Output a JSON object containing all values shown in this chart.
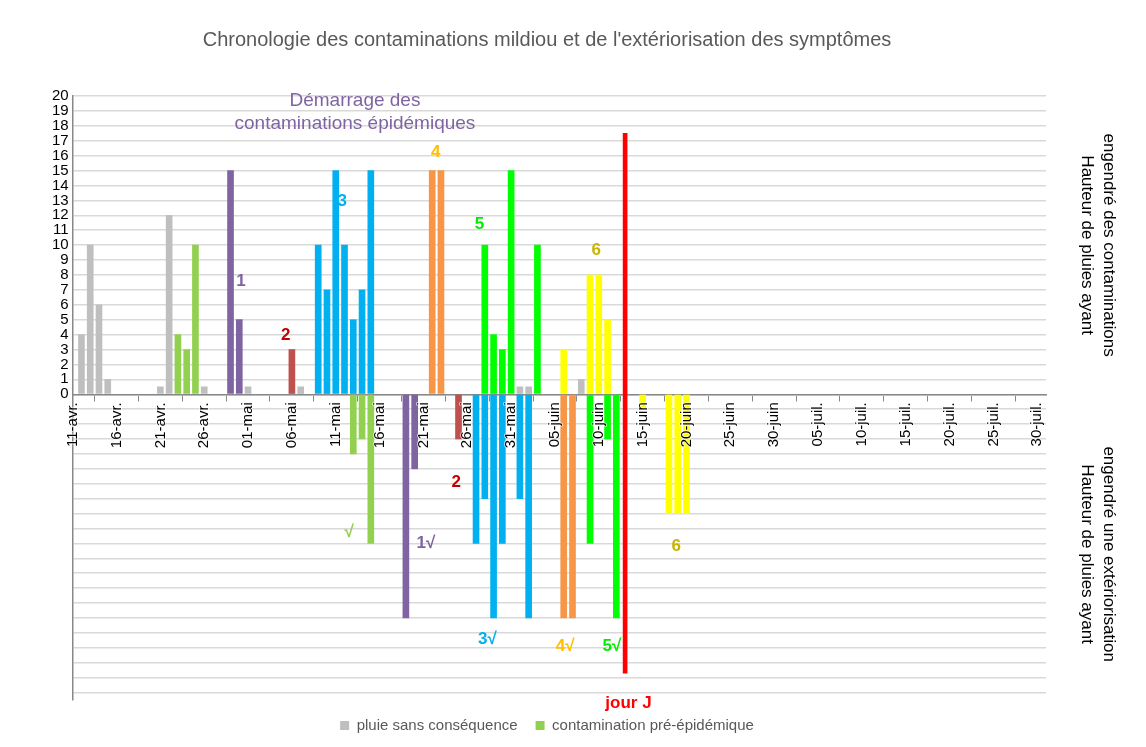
{
  "chart_data": {
    "type": "bar",
    "title": "Chronologie des contaminations mildiou et de l'extériorisation des symptômes",
    "ylabel": "Hauteur de pluies ayant engendré des contaminations",
    "y2label": "Hauteur de pluies ayant engendré une extériorisation",
    "xlim": [
      "--04-11",
      "--07-31"
    ],
    "xticks": [
      {
        "value": "--04-11",
        "label": "11-avr."
      },
      {
        "value": "--04-16",
        "label": "16-avr."
      },
      {
        "value": "--04-21",
        "label": "21-avr."
      },
      {
        "value": "--04-26",
        "label": "26-avr."
      },
      {
        "value": "--05-01",
        "label": "01-mai"
      },
      {
        "value": "--05-06",
        "label": "06-mai"
      },
      {
        "value": "--05-11",
        "label": "11-mai"
      },
      {
        "value": "--05-16",
        "label": "16-mai"
      },
      {
        "value": "--05-21",
        "label": "21-mai"
      },
      {
        "value": "--05-26",
        "label": "26-mai"
      },
      {
        "value": "--05-31",
        "label": "31-mai"
      },
      {
        "value": "--06-05",
        "label": "05-juin"
      },
      {
        "value": "--06-10",
        "label": "10-juin"
      },
      {
        "value": "--06-15",
        "label": "15-juin"
      },
      {
        "value": "--06-20",
        "label": "20-juin"
      },
      {
        "value": "--06-25",
        "label": "25-juin"
      },
      {
        "value": "--06-30",
        "label": "30-juin"
      },
      {
        "value": "--07-05",
        "label": "05-juil."
      },
      {
        "value": "--07-10",
        "label": "10-juil."
      },
      {
        "value": "--07-15",
        "label": "15-juil."
      },
      {
        "value": "--07-20",
        "label": "20-juil."
      },
      {
        "value": "--07-25",
        "label": "25-juil."
      },
      {
        "value": "--07-30",
        "label": "30-juil."
      }
    ],
    "ylim": [
      -20.5,
      20
    ],
    "yticks": [
      {
        "value": -20,
        "label": null
      },
      {
        "value": -19,
        "label": null
      },
      {
        "value": -18,
        "label": null
      },
      {
        "value": -17,
        "label": null
      },
      {
        "value": -16,
        "label": null
      },
      {
        "value": -15,
        "label": null
      },
      {
        "value": -14,
        "label": null
      },
      {
        "value": -13,
        "label": null
      },
      {
        "value": -12,
        "label": null
      },
      {
        "value": -11,
        "label": null
      },
      {
        "value": -10,
        "label": null
      },
      {
        "value": -9,
        "label": null
      },
      {
        "value": -8,
        "label": null
      },
      {
        "value": -7,
        "label": null
      },
      {
        "value": -6,
        "label": null
      },
      {
        "value": -5,
        "label": null
      },
      {
        "value": -4,
        "label": null
      },
      {
        "value": -3,
        "label": null
      },
      {
        "value": -2,
        "label": null
      },
      {
        "value": -1,
        "label": null
      },
      0,
      1,
      2,
      3,
      4,
      5,
      6,
      7,
      8,
      9,
      10,
      11,
      12,
      13,
      14,
      15,
      16,
      17,
      18,
      19,
      20
    ],
    "grid": "y",
    "legend": "bottom",
    "series": [
      {
        "name": "pluie sans conséquence",
        "color": "#bfbfbf",
        "x": [
          "--04-12",
          "--04-13",
          "--04-14",
          "--04-15",
          "--04-21",
          "--04-22",
          "--04-26",
          "--05-01",
          "--05-07",
          "--06-01",
          "--06-02",
          "--06-08"
        ],
        "values": [
          4,
          10,
          6,
          1,
          0.5,
          12,
          0.5,
          0.5,
          0.5,
          0.5,
          0.5,
          1
        ]
      },
      {
        "name": "contamination pré-épidémique",
        "color": "#92d050",
        "x": [
          "--04-23",
          "--04-24",
          "--04-25",
          "--05-13",
          "--05-14",
          "--05-15"
        ],
        "values": [
          4,
          3,
          10,
          -4,
          -3,
          -10
        ]
      },
      {
        "color": "#8064a2",
        "x": [
          "--04-29",
          "--04-30",
          "--05-19",
          "--05-20"
        ],
        "values": [
          15,
          5,
          -15,
          -5
        ]
      },
      {
        "color": "#c0504d",
        "x": [
          "--05-06",
          "--05-25"
        ],
        "values": [
          3,
          -3
        ]
      },
      {
        "color": "#00b0f0",
        "x": [
          "--05-09",
          "--05-10",
          "--05-11",
          "--05-12",
          "--05-13",
          "--05-14",
          "--05-15",
          "--05-27",
          "--05-28",
          "--05-29",
          "--05-30",
          "--05-31",
          "--06-01",
          "--06-02"
        ],
        "values": [
          10,
          7,
          15,
          10,
          5,
          7,
          15,
          -10,
          -7,
          -15,
          -10,
          null,
          -7,
          -15
        ]
      },
      {
        "color": "#f79646",
        "x": [
          "--05-22",
          "--05-23",
          "--06-06",
          "--06-07"
        ],
        "values": [
          15,
          15,
          -15,
          -15
        ]
      },
      {
        "color": "#00ff00",
        "x": [
          "--05-28",
          "--05-29",
          "--05-30",
          "--05-31",
          "--06-03",
          "--06-09",
          "--06-10",
          "--06-11",
          "--06-12"
        ],
        "values": [
          10,
          4,
          3,
          15,
          10,
          -10,
          null,
          -3,
          -15
        ]
      },
      {
        "color": "#ffff00",
        "x": [
          "--06-06",
          "--06-09",
          "--06-10",
          "--06-11",
          "--06-15",
          "--06-18",
          "--06-19",
          "--06-20"
        ],
        "values": [
          3,
          8,
          8,
          5,
          -1,
          -8,
          -8,
          -8
        ]
      },
      {
        "color": "#ff0000",
        "x": [
          "--06-13"
        ],
        "base": [
          -18.7
        ],
        "values": [
          36.2
        ]
      }
    ],
    "annotations": [
      "Démarrage des contaminations épidémiques",
      "1",
      "2",
      "3",
      "4",
      "5",
      "6",
      "√",
      "1√",
      "2",
      "3√",
      "4√",
      "5√",
      "6",
      "jour J"
    ]
  }
}
